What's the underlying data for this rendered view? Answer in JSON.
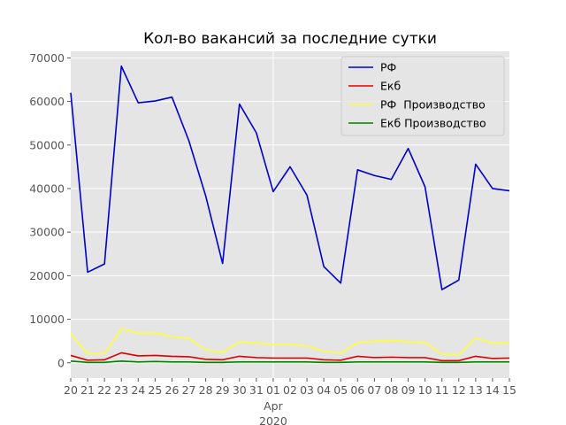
{
  "chart_data": {
    "type": "line",
    "title": "Кол-во вакансий за последние сутки",
    "xlabel": "",
    "ylabel": "",
    "ylim": [
      -3500,
      71500
    ],
    "y_ticks": [
      0,
      10000,
      20000,
      30000,
      40000,
      50000,
      60000,
      70000
    ],
    "x": [
      "20",
      "21",
      "22",
      "23",
      "24",
      "25",
      "26",
      "27",
      "28",
      "29",
      "30",
      "31",
      "01",
      "02",
      "03",
      "04",
      "05",
      "06",
      "07",
      "08",
      "09",
      "10",
      "11",
      "12",
      "13",
      "14",
      "15"
    ],
    "x_sublabel": {
      "index": 12,
      "month": "Apr",
      "year": "2020"
    },
    "grid": true,
    "legend_position": "top-right",
    "series": [
      {
        "name": "РФ",
        "color": "#0000cc",
        "values": [
          62000,
          20800,
          22700,
          68100,
          59700,
          60100,
          61000,
          51000,
          38300,
          22800,
          59400,
          52800,
          39300,
          45000,
          38500,
          22100,
          18300,
          44300,
          43000,
          42100,
          49200,
          40400,
          16800,
          19000,
          45600,
          40000,
          39500
        ]
      },
      {
        "name": "Екб",
        "color": "#dd0000",
        "values": [
          1700,
          600,
          700,
          2300,
          1600,
          1700,
          1500,
          1400,
          800,
          700,
          1500,
          1200,
          1100,
          1100,
          1100,
          700,
          600,
          1500,
          1200,
          1300,
          1200,
          1200,
          500,
          500,
          1500,
          1000,
          1100
        ]
      },
      {
        "name": "РФ  Производство",
        "color": "#ffff33",
        "values": [
          6700,
          2100,
          2100,
          7800,
          6800,
          6900,
          6000,
          5600,
          3000,
          2400,
          4800,
          4600,
          4200,
          4200,
          3900,
          2700,
          2200,
          4700,
          4900,
          5100,
          4800,
          4700,
          2000,
          1900,
          5700,
          4500,
          4600
        ]
      },
      {
        "name": "Екб Производство",
        "color": "#008000",
        "values": [
          400,
          100,
          100,
          400,
          200,
          300,
          200,
          200,
          100,
          100,
          200,
          200,
          200,
          200,
          200,
          100,
          100,
          200,
          200,
          200,
          200,
          200,
          100,
          100,
          200,
          200,
          200
        ]
      }
    ]
  }
}
